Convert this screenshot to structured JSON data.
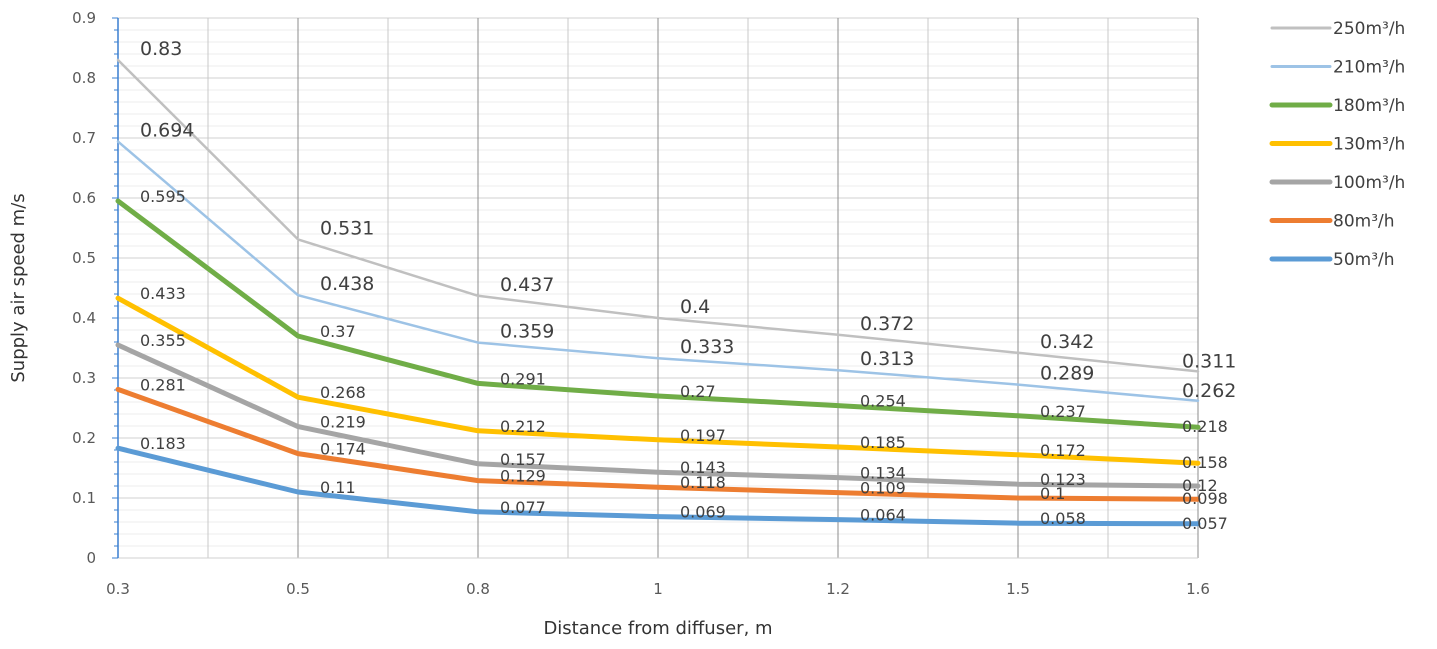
{
  "chart_data": {
    "type": "line",
    "title": "",
    "xlabel": "Distance from diffuser, m",
    "ylabel": "Supply air speed m/s",
    "categories": [
      "0.3",
      "0.5",
      "0.8",
      "1",
      "1.2",
      "1.5",
      "1.6"
    ],
    "ylim": [
      0,
      0.9
    ],
    "yticks": [
      "0",
      "0.1",
      "0.2",
      "0.3",
      "0.4",
      "0.5",
      "0.6",
      "0.7",
      "0.8",
      "0.9"
    ],
    "grid": true,
    "legend_position": "right",
    "series": [
      {
        "name": "250m³/h",
        "color": "#c0c0c0",
        "values": [
          0.83,
          0.531,
          0.437,
          0.4,
          0.372,
          0.342,
          0.311
        ],
        "labels": [
          "0.83",
          "0.531",
          "0.437",
          "0.4",
          "0.372",
          "0.342",
          "0.311"
        ]
      },
      {
        "name": "210m³/h",
        "color": "#9dc3e6",
        "values": [
          0.694,
          0.438,
          0.359,
          0.333,
          0.313,
          0.289,
          0.262
        ],
        "labels": [
          "0.694",
          "0.438",
          "0.359",
          "0.333",
          "0.313",
          "0.289",
          "0.262"
        ]
      },
      {
        "name": "180m³/h",
        "color": "#70ad47",
        "values": [
          0.595,
          0.37,
          0.291,
          0.27,
          0.254,
          0.237,
          0.218
        ],
        "labels": [
          "0.595",
          "0.37",
          "0.291",
          "0.27",
          "0.254",
          "0.237",
          "0.218"
        ]
      },
      {
        "name": "130m³/h",
        "color": "#ffc000",
        "values": [
          0.433,
          0.268,
          0.212,
          0.197,
          0.185,
          0.172,
          0.158
        ],
        "labels": [
          "0.433",
          "0.268",
          "0.212",
          "0.197",
          "0.185",
          "0.172",
          "0.158"
        ]
      },
      {
        "name": "100m³/h",
        "color": "#a5a5a5",
        "values": [
          0.355,
          0.219,
          0.157,
          0.143,
          0.134,
          0.123,
          0.12
        ],
        "labels": [
          "0.355",
          "0.219",
          "0.157",
          "0.143",
          "0.134",
          "0.123",
          "0.12"
        ]
      },
      {
        "name": "80m³/h",
        "color": "#ed7d31",
        "values": [
          0.281,
          0.174,
          0.129,
          0.118,
          0.109,
          0.1,
          0.098
        ],
        "labels": [
          "0.281",
          "0.174",
          "0.129",
          "0.118",
          "0.109",
          "0.1",
          "0.098"
        ]
      },
      {
        "name": "50m³/h",
        "color": "#5b9bd5",
        "values": [
          0.183,
          0.11,
          0.077,
          0.069,
          0.064,
          0.058,
          0.057
        ],
        "labels": [
          "0.183",
          "0.11",
          "0.077",
          "0.069",
          "0.064",
          "0.058",
          "0.057"
        ]
      }
    ]
  }
}
